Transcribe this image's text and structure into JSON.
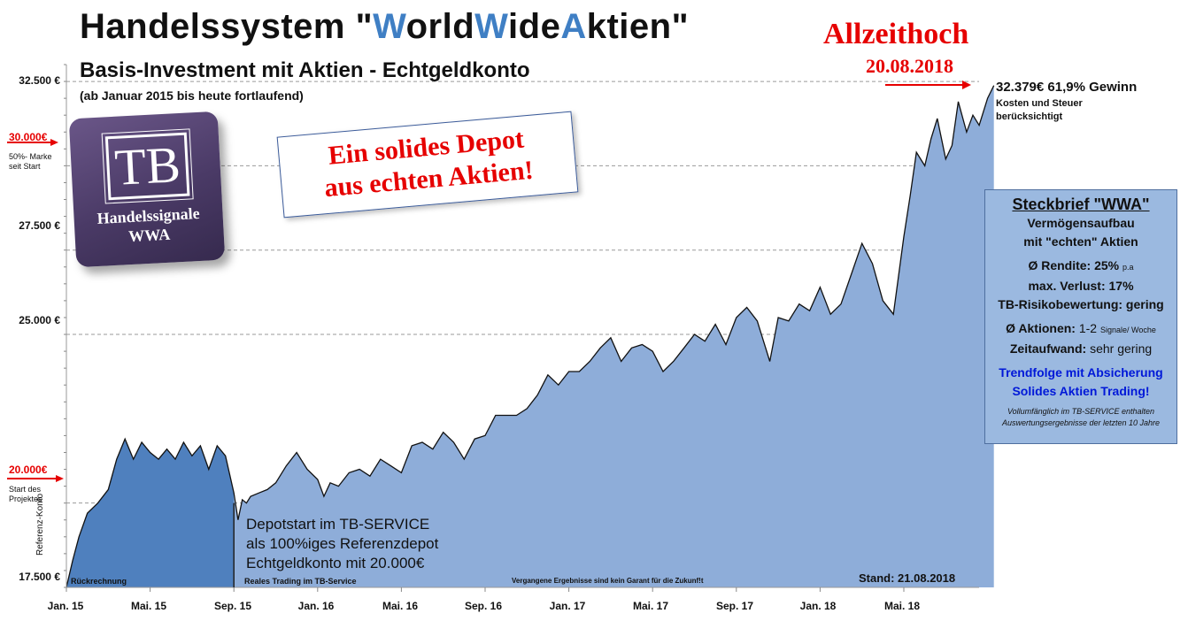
{
  "header": {
    "title_pre": "Handelssystem \"",
    "title_w1": "W",
    "title_mid1": "orld",
    "title_w2": "W",
    "title_mid2": "ide",
    "title_a": "A",
    "title_post": "ktien\"",
    "subtitle": "Basis-Investment mit Aktien - Echtgeldkonto",
    "note": "(ab Januar 2015 bis heute fortlaufend)"
  },
  "ath": {
    "title": "Allzeithoch",
    "date": "20.08.2018"
  },
  "current": {
    "value": "32.379€  61,9% Gewinn",
    "sub": "Kosten und Steuer berücksichtigt"
  },
  "markers": {
    "m30k": "30.000€",
    "m30k_sub1": "50%- Marke",
    "m30k_sub2": "seit  Start",
    "m20k": "20.000€",
    "m20k_sub1": "Start des",
    "m20k_sub2": "Projektes",
    "ref_label": "Referenz-Konto"
  },
  "logo": {
    "tb": "TB",
    "line1": "Handelssignale",
    "line2": "WWA"
  },
  "banner": {
    "line1": "Ein solides Depot",
    "line2": "aus echten Aktien!"
  },
  "profile": {
    "title": "Steckbrief \"WWA\"",
    "line1": "Vermögensaufbau",
    "line2": "mit \"echten\" Aktien",
    "rendite": "Ø Rendite: 25%",
    "rendite_unit": "p.a",
    "verlust": "max. Verlust: 17%",
    "risiko": "TB-Risikobewertung: gering",
    "aktionen": "Ø Aktionen:",
    "aktionen_val": "1-2",
    "aktionen_unit": "Signale/ Woche",
    "zeit": "Zeitaufwand:",
    "zeit_val": "sehr gering",
    "blue1": "Trendfolge mit Absicherung",
    "blue2": "Solides Aktien Trading!",
    "small": "Vollumfänglich im TB-SERVICE enthalten Auswertungsergebnisse der letzten 10 Jahre"
  },
  "depot_note": {
    "l1": "Depotstart im TB-SERVICE",
    "l2": "als 100%iges Referenzdepot",
    "l3": "Echtgeldkonto mit 20.000€"
  },
  "bottom": {
    "left": "Rückrechnung",
    "middle": "Reales Trading  im TB-Service",
    "disclaimer": "Vergangene  Ergebnisse  sind kein Garant  für die Zukunf!t",
    "stand": "Stand: 21.08.2018"
  },
  "colors": {
    "dark_fill": "#4f80be",
    "light_fill": "#8eadd9",
    "red": "#e60000",
    "blue_text": "#0018d8",
    "title_blue": "#3f7fc4"
  },
  "chart_data": {
    "type": "area",
    "ylim": [
      17500,
      33000
    ],
    "y_ticks": [
      {
        "value": 32500,
        "label": "32.500  €"
      },
      {
        "value": 27500,
        "label": "27.500  €"
      },
      {
        "value": 25000,
        "label": "25.000  €"
      },
      {
        "value": 17500,
        "label": "17.500  €"
      }
    ],
    "x_ticks": [
      "Jan. 15",
      "Mai. 15",
      "Sep. 15",
      "Jan. 16",
      "Mai. 16",
      "Sep. 16",
      "Jan. 17",
      "Mai. 17",
      "Sep. 17",
      "Jan. 18",
      "Mai. 18"
    ],
    "split_after_month": 8,
    "reference_lines": [
      30000,
      20000
    ],
    "series": [
      {
        "x_months": [
          0,
          0.3,
          0.6,
          1,
          1.5,
          2,
          2.4,
          2.8,
          3.2,
          3.6,
          4,
          4.4,
          4.8,
          5.2,
          5.6,
          6,
          6.4,
          6.8,
          7.2,
          7.6,
          8,
          8.2,
          8.4,
          8.6,
          8.8,
          9.2,
          9.6,
          10,
          10.5,
          11,
          11.5,
          12,
          12.3,
          12.6,
          13,
          13.5,
          14,
          14.5,
          15,
          15.5,
          16,
          16.5,
          17,
          17.5,
          18,
          18.5,
          19,
          19.5,
          20,
          20.5,
          21,
          21.5,
          22,
          22.5,
          23,
          23.5,
          24,
          24.5,
          25,
          25.5,
          26,
          26.5,
          27,
          27.5,
          28,
          28.5,
          29,
          29.5,
          30,
          30.5,
          31,
          31.5,
          32,
          32.5,
          33,
          33.3,
          33.6,
          34,
          34.5,
          35,
          35.5,
          36,
          36.5,
          37,
          37.5,
          38,
          38.5,
          39,
          39.5,
          40,
          40.3,
          40.6,
          41,
          41.3,
          41.6,
          42,
          42.3,
          42.6,
          43,
          43.3,
          43.6,
          44,
          44.3
        ],
        "values": [
          17500,
          18300,
          19000,
          19700,
          20000,
          20400,
          21300,
          21900,
          21300,
          21800,
          21500,
          21300,
          21600,
          21300,
          21800,
          21400,
          21700,
          21000,
          21700,
          21400,
          20300,
          19500,
          20100,
          20000,
          20200,
          20300,
          20400,
          20600,
          21100,
          21500,
          21000,
          20700,
          20200,
          20600,
          20500,
          20900,
          21000,
          20800,
          21300,
          21100,
          20900,
          21700,
          21800,
          21600,
          22100,
          21800,
          21300,
          21900,
          22000,
          22600,
          22600,
          22600,
          22800,
          23200,
          23800,
          23500,
          23900,
          23900,
          24200,
          24600,
          24900,
          24200,
          24600,
          24700,
          24500,
          23900,
          24200,
          24600,
          25000,
          24800,
          25300,
          24700,
          25500,
          25800,
          25400,
          24800,
          24200,
          25500,
          25400,
          25900,
          25700,
          26400,
          25600,
          25900,
          26800,
          27700,
          27100,
          26000,
          25600,
          27900,
          29100,
          30400,
          30000,
          30800,
          31400,
          30200,
          30600,
          31900,
          31000,
          31500,
          31200,
          32000,
          32379
        ]
      }
    ]
  }
}
